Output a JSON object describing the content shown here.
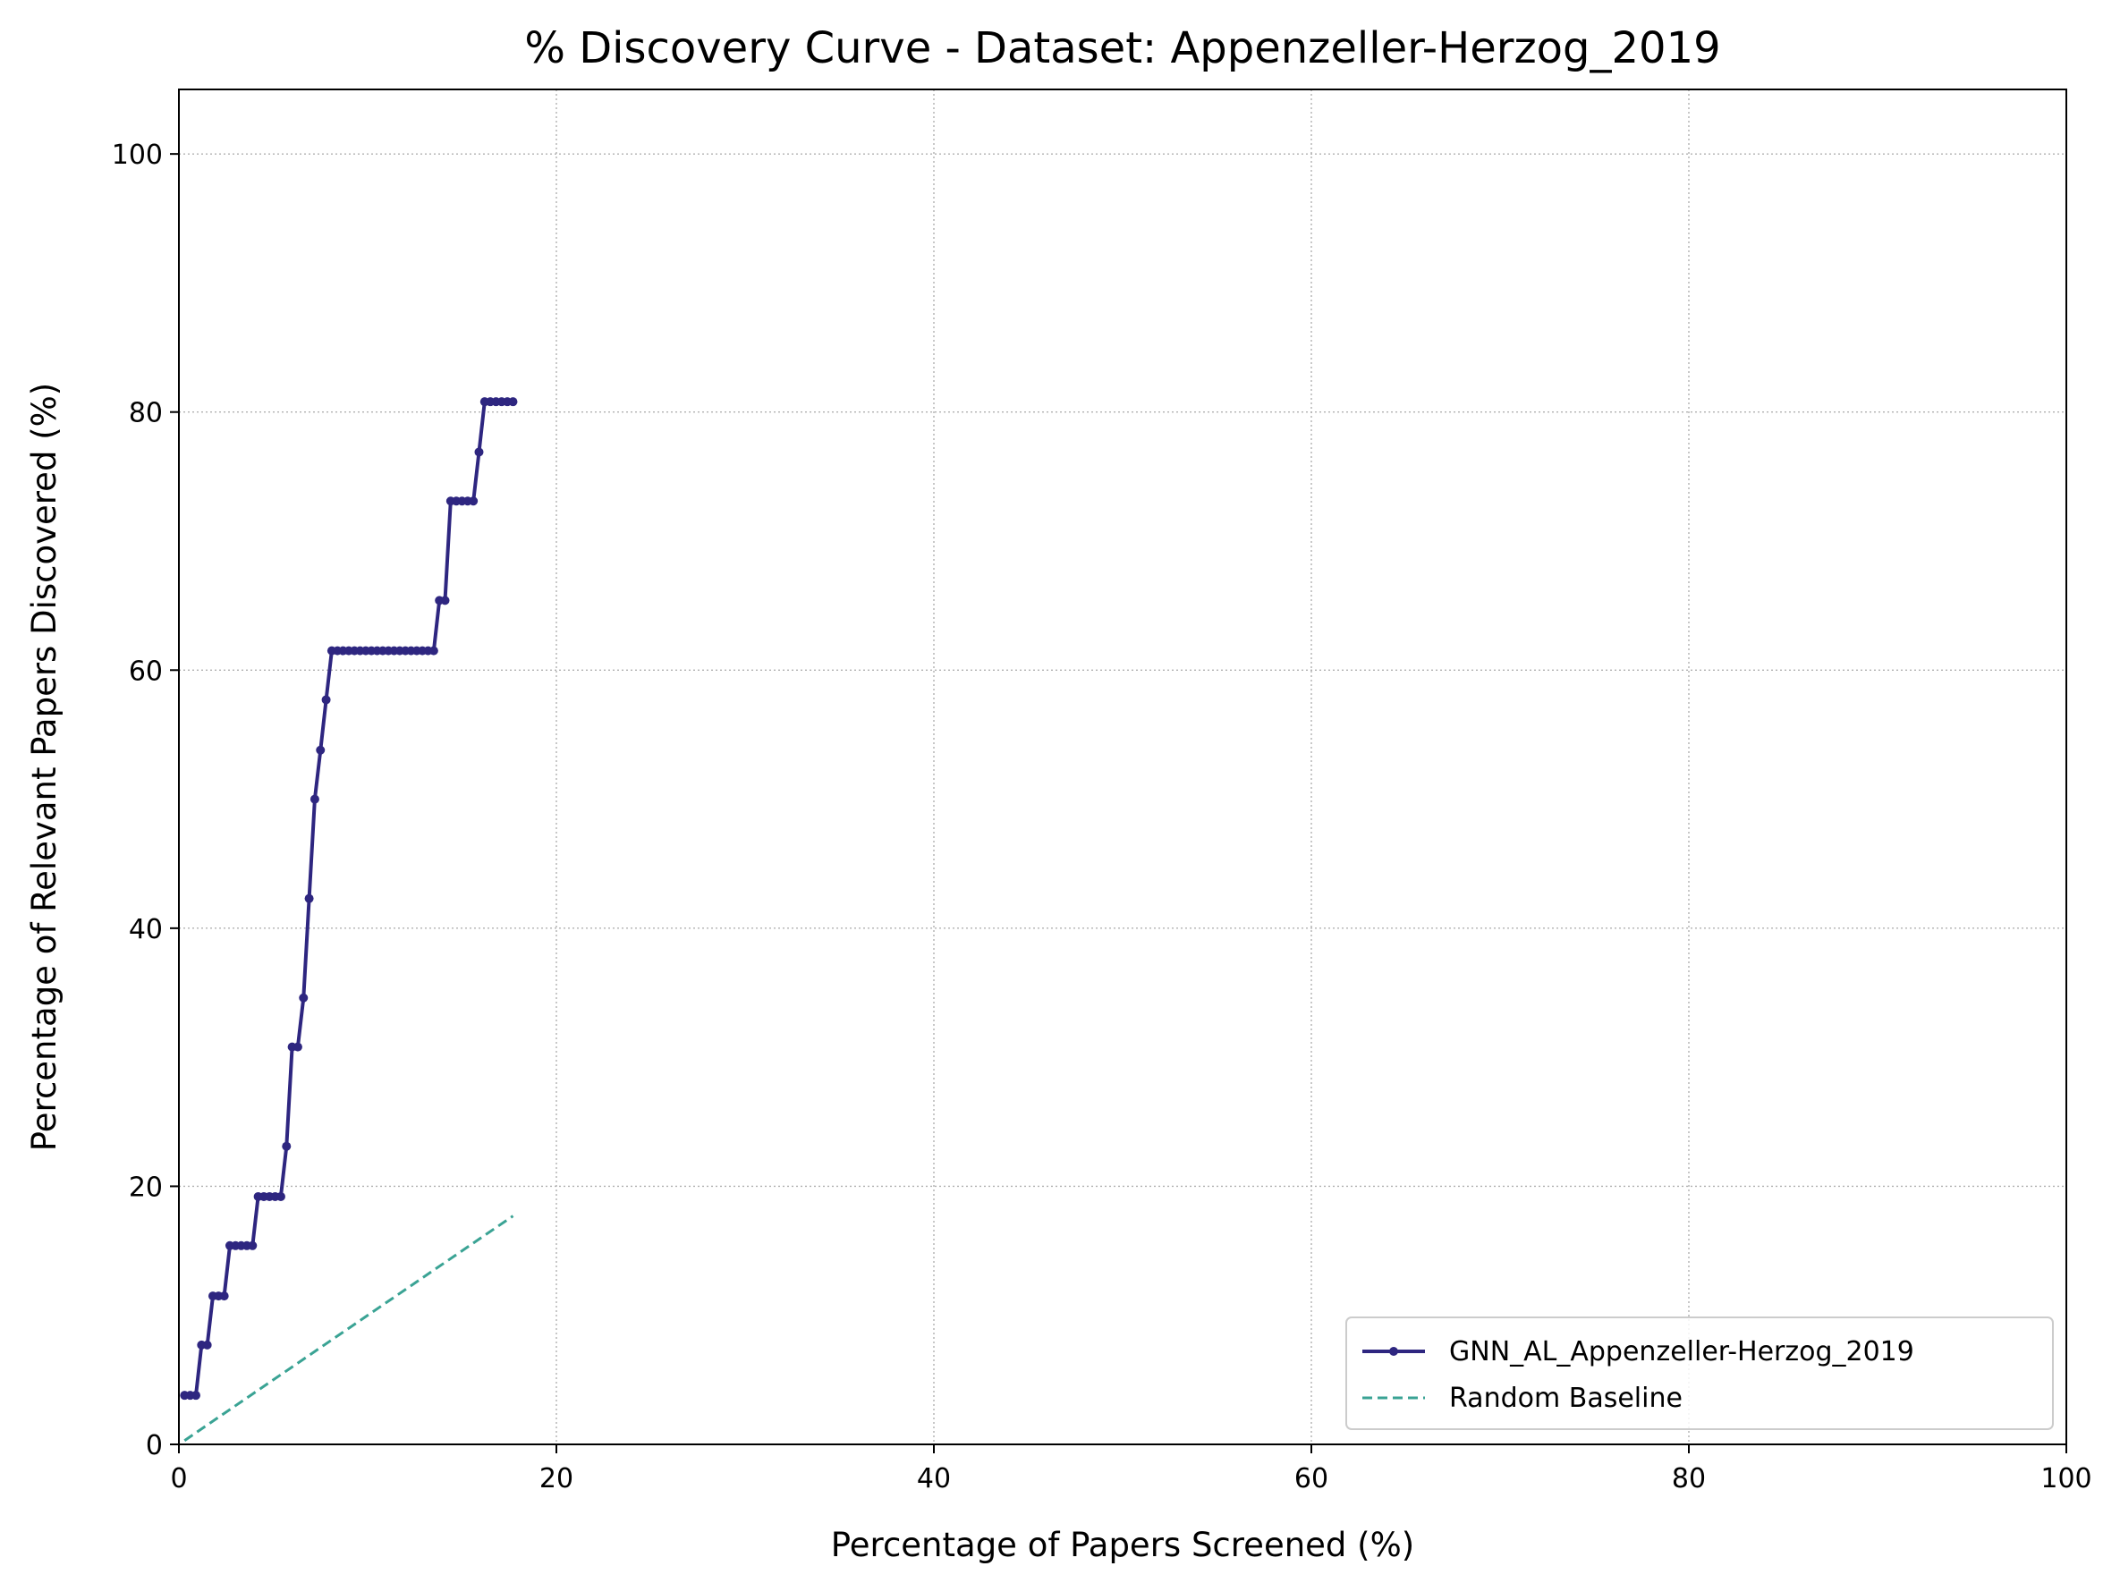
{
  "chart_data": {
    "type": "line",
    "title": "% Discovery Curve - Dataset: Appenzeller-Herzog_2019",
    "xlabel": "Percentage of Papers Screened (%)",
    "ylabel": "Percentage of Relevant Papers Discovered (%)",
    "xlim": [
      0,
      100
    ],
    "ylim": [
      0,
      105
    ],
    "xticks": [
      0,
      20,
      40,
      60,
      80,
      100
    ],
    "yticks": [
      0,
      20,
      40,
      60,
      80,
      100
    ],
    "grid": true,
    "legend_position": "lower-right",
    "series": [
      {
        "name": "GNN_AL_Appenzeller-Herzog_2019",
        "color": "#2e2680",
        "style": "solid-with-markers",
        "x": [
          0.3,
          0.6,
          0.9,
          1.2,
          1.5,
          1.8,
          2.1,
          2.4,
          2.7,
          3.0,
          3.3,
          3.6,
          3.9,
          4.2,
          4.5,
          4.8,
          5.1,
          5.4,
          5.7,
          6.0,
          6.3,
          6.6,
          6.9,
          7.2,
          7.5,
          7.8,
          8.1,
          8.4,
          8.7,
          9.0,
          9.3,
          9.6,
          9.9,
          10.2,
          10.5,
          10.8,
          11.1,
          11.4,
          11.7,
          12.0,
          12.3,
          12.6,
          12.9,
          13.2,
          13.5,
          13.8,
          14.1,
          14.4,
          14.7,
          15.0,
          15.3,
          15.6,
          15.9,
          16.2,
          16.5,
          16.8,
          17.1,
          17.4,
          17.7
        ],
        "y": [
          3.8,
          3.8,
          3.8,
          7.7,
          7.7,
          11.5,
          11.5,
          11.5,
          15.4,
          15.4,
          15.4,
          15.4,
          15.4,
          19.2,
          19.2,
          19.2,
          19.2,
          19.2,
          23.1,
          30.8,
          30.8,
          34.6,
          42.3,
          50.0,
          53.8,
          57.7,
          61.5,
          61.5,
          61.5,
          61.5,
          61.5,
          61.5,
          61.5,
          61.5,
          61.5,
          61.5,
          61.5,
          61.5,
          61.5,
          61.5,
          61.5,
          61.5,
          61.5,
          61.5,
          61.5,
          65.4,
          65.4,
          73.1,
          73.1,
          73.1,
          73.1,
          73.1,
          76.9,
          80.8,
          80.8,
          80.8,
          80.8,
          80.8,
          80.8
        ]
      },
      {
        "name": "Random Baseline",
        "color": "#3aa394",
        "style": "dashed",
        "x": [
          0.3,
          17.7
        ],
        "y": [
          0.3,
          17.7
        ]
      }
    ]
  }
}
